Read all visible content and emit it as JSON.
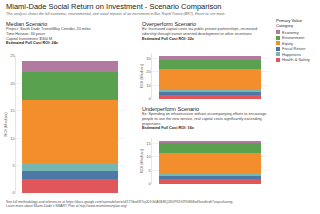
{
  "page": {
    "title": "Miami-Dade Social Return on Investment - Scenario Comparison",
    "subtitle": "This analysis shows the full economic, environmental, and social impacts of an investment in Bus Rapid Transit (BRT). Hover to see more.",
    "legend_title": "Primary Value Category",
    "footer": [
      "See full methodology and references at https://docs.google.com/spreadsheets/d/1TXbe6R7vj0D5G0A5B8lQZ6UPKDfZPkB6Ewf3eed/edit?usp=sharing",
      "Learn more about Miami-Dade's SMART Plan at http://www.miamismartplan.org/"
    ]
  },
  "chart_data": [
    {
      "type": "bar",
      "stacked": true,
      "grid": true,
      "tick_labels": "y",
      "title": "Median Scenario",
      "annotations": [
        "Project: South Dade TransitWay Corridor, 20 miles",
        "Time Horizon: 30 years",
        "Capital Investment: $300 M",
        "Estimated Full Cost ROI: 24x"
      ],
      "y_label": "ROI (Median)",
      "categories": [
        null
      ],
      "series": [
        {
          "name": "Health & Safety",
          "color": "#e15759",
          "values": [
            2.5
          ]
        },
        {
          "name": "Fiscal Return",
          "color": "#4e79a7",
          "values": [
            1.5
          ]
        },
        {
          "name": "Happiness",
          "color": "#76b7b2",
          "values": [
            1.5
          ]
        },
        {
          "name": "Equity",
          "color": "#f28e2b",
          "values": [
            11.5
          ]
        },
        {
          "name": "Environment",
          "color": "#59a14f",
          "values": [
            5
          ]
        },
        {
          "name": "Economy",
          "color": "#b07aa1",
          "values": [
            2
          ]
        }
      ],
      "ylim": [
        0,
        25
      ],
      "yticks": [
        0,
        5,
        10,
        15,
        20,
        25
      ]
    },
    {
      "type": "bar",
      "stacked": true,
      "grid": true,
      "tick_labels": "y",
      "title": "Overperform Scenario",
      "annotations": [
        "Ex: Increased capital costs via public private partnerships, increased ridership through transit oriented development or other incentives",
        "Estimated Full Cost ROI: 32x"
      ],
      "y_label": "ROI (Median)",
      "categories": [
        null
      ],
      "series": [
        {
          "name": "Health & Safety",
          "color": "#e15759",
          "values": [
            3
          ]
        },
        {
          "name": "Fiscal Return",
          "color": "#4e79a7",
          "values": [
            2
          ]
        },
        {
          "name": "Happiness",
          "color": "#76b7b2",
          "values": [
            2
          ]
        },
        {
          "name": "Equity",
          "color": "#f28e2b",
          "values": [
            15
          ]
        },
        {
          "name": "Environment",
          "color": "#59a14f",
          "values": [
            7
          ]
        },
        {
          "name": "Economy",
          "color": "#b07aa1",
          "values": [
            3
          ]
        }
      ],
      "ylim": [
        0,
        34
      ],
      "yticks": [
        0,
        10,
        20,
        30
      ]
    },
    {
      "type": "bar",
      "stacked": true,
      "grid": true,
      "tick_labels": "y",
      "title": "Underperform Scenario",
      "annotations": [
        "Ex: Spending on infrastructure without accompanying efforts to encourage people to use the new service, real capital costs significantly exceeding projections",
        "Estimated Full Cost ROI: 16x"
      ],
      "y_label": "ROI (Median)",
      "categories": [
        null
      ],
      "series": [
        {
          "name": "Health & Safety",
          "color": "#e15759",
          "values": [
            2
          ]
        },
        {
          "name": "Fiscal Return",
          "color": "#4e79a7",
          "values": [
            1
          ]
        },
        {
          "name": "Happiness",
          "color": "#76b7b2",
          "values": [
            1
          ]
        },
        {
          "name": "Equity",
          "color": "#f28e2b",
          "values": [
            7.5
          ]
        },
        {
          "name": "Environment",
          "color": "#59a14f",
          "values": [
            3.5
          ]
        },
        {
          "name": "Economy",
          "color": "#b07aa1",
          "values": [
            1
          ]
        }
      ],
      "ylim": [
        0,
        17
      ],
      "yticks": [
        0,
        5,
        10,
        15
      ]
    }
  ]
}
